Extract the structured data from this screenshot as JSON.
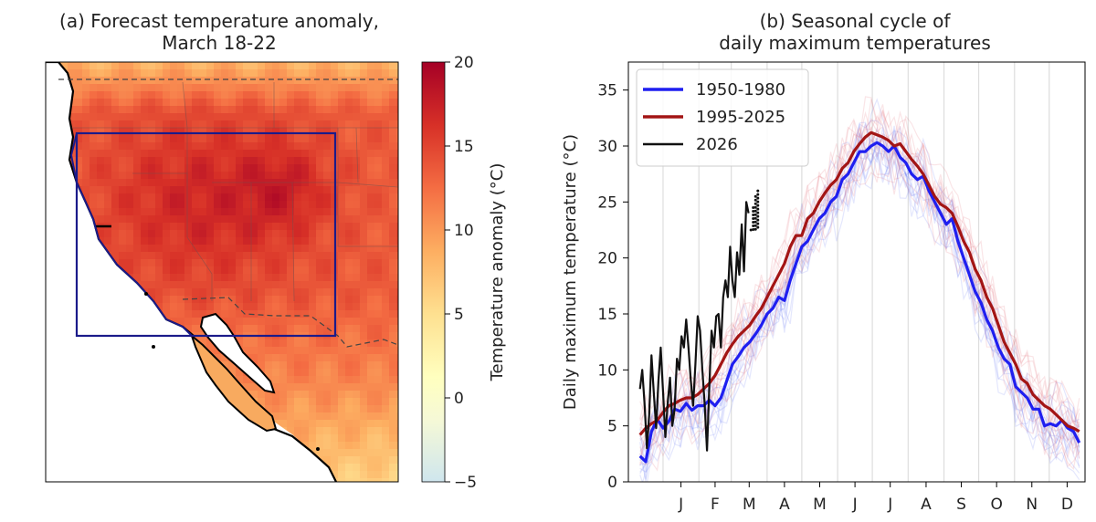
{
  "chart_data": [
    {
      "type": "heatmap",
      "title_line1": "(a) Forecast temperature anomaly,",
      "title_line2": "March 18-22",
      "colorbar_label": "Temperature anomaly (°C)",
      "colorbar_ticks": [
        "20",
        "15",
        "10",
        "5",
        "0",
        "−5"
      ],
      "colorbar_range": [
        -5,
        20
      ],
      "colormap": [
        "#cfe6ee",
        "#ffffbf",
        "#fee090",
        "#fdae61",
        "#f46d43",
        "#d73027",
        "#a50026"
      ],
      "region_box_color": "#1b1b8a"
    },
    {
      "type": "line",
      "title_line1": "(b) Seasonal cycle of",
      "title_line2": "daily maximum temperatures",
      "ylabel": "Daily maximum temperature (°C)",
      "ylim": [
        0,
        37.5
      ],
      "yticks": [
        "0",
        "5",
        "10",
        "15",
        "20",
        "25",
        "30",
        "35"
      ],
      "xlim": [
        -30,
        365
      ],
      "month_labels": [
        "J",
        "F",
        "M",
        "A",
        "M",
        "J",
        "J",
        "A",
        "S",
        "O",
        "N",
        "D"
      ],
      "month_day_index": [
        0,
        31,
        59,
        90,
        120,
        151,
        181,
        212,
        243,
        273,
        304,
        334
      ],
      "series": [
        {
          "name": "1950-1980",
          "color": "#1f1ff0",
          "x": [
            -20,
            -15,
            -10,
            -5,
            0,
            5,
            10,
            15,
            20,
            25,
            30,
            35,
            40,
            45,
            50,
            55,
            60,
            65,
            70,
            75,
            80,
            85,
            90,
            95,
            100,
            105,
            110,
            115,
            120,
            125,
            130,
            135,
            140,
            145,
            150,
            155,
            160,
            165,
            170,
            175,
            180,
            185,
            190,
            195,
            200,
            205,
            210,
            215,
            220,
            225,
            230,
            235,
            240,
            245,
            250,
            255,
            260,
            265,
            270,
            275,
            280,
            285,
            290,
            295,
            300,
            305,
            310,
            315,
            320,
            325,
            330,
            335,
            340,
            345,
            350,
            355,
            360
          ],
          "values": [
            2.3,
            1.8,
            4.5,
            5.6,
            4.8,
            5.4,
            6.5,
            6.3,
            7.0,
            6.4,
            6.8,
            6.8,
            7.3,
            6.8,
            7.5,
            9.0,
            10.5,
            11.2,
            12.0,
            12.5,
            13.2,
            14.0,
            15.0,
            15.5,
            16.5,
            16.2,
            18.0,
            19.5,
            21.0,
            21.5,
            22.5,
            23.5,
            24.0,
            25.0,
            25.5,
            27.0,
            27.5,
            28.5,
            29.5,
            29.5,
            30.0,
            30.3,
            30.0,
            29.5,
            30.0,
            29.0,
            28.5,
            27.5,
            27.0,
            27.3,
            26.0,
            25.0,
            24.0,
            23.0,
            23.5,
            21.5,
            20.0,
            18.5,
            17.0,
            16.0,
            14.5,
            13.5,
            12.0,
            11.0,
            10.5,
            8.5,
            8.0,
            7.5,
            6.5,
            6.5,
            5.0,
            5.2,
            5.0,
            5.5,
            4.8,
            4.5,
            3.5
          ]
        },
        {
          "name": "1995-2025",
          "color": "#a31515",
          "x": [
            -20,
            -15,
            -10,
            -5,
            0,
            5,
            10,
            15,
            20,
            25,
            30,
            35,
            40,
            45,
            50,
            55,
            60,
            65,
            70,
            75,
            80,
            85,
            90,
            95,
            100,
            105,
            110,
            115,
            120,
            125,
            130,
            135,
            140,
            145,
            150,
            155,
            160,
            165,
            170,
            175,
            180,
            185,
            190,
            195,
            200,
            205,
            210,
            215,
            220,
            225,
            230,
            235,
            240,
            245,
            250,
            255,
            260,
            265,
            270,
            275,
            280,
            285,
            290,
            295,
            300,
            305,
            310,
            315,
            320,
            325,
            330,
            335,
            340,
            345,
            350,
            355,
            360
          ],
          "values": [
            4.2,
            4.8,
            5.2,
            5.5,
            6.2,
            6.8,
            7.0,
            7.3,
            7.5,
            7.5,
            7.8,
            8.3,
            8.8,
            9.5,
            10.5,
            11.5,
            12.3,
            13.0,
            13.5,
            14.0,
            14.8,
            15.5,
            16.5,
            17.5,
            18.5,
            19.5,
            21.0,
            22.0,
            22.0,
            23.5,
            24.0,
            25.0,
            25.8,
            26.5,
            27.0,
            28.0,
            28.5,
            29.5,
            30.2,
            30.8,
            31.2,
            31.0,
            30.8,
            30.5,
            30.0,
            30.2,
            29.5,
            28.8,
            28.2,
            27.5,
            26.5,
            25.5,
            24.8,
            24.5,
            24.0,
            22.8,
            21.5,
            20.5,
            19.0,
            18.0,
            16.5,
            15.5,
            14.0,
            12.5,
            11.5,
            10.5,
            9.2,
            8.8,
            7.8,
            7.3,
            6.8,
            6.5,
            6.0,
            5.5,
            5.0,
            4.8,
            4.5
          ]
        },
        {
          "name": "2026",
          "color": "#111111",
          "x": [
            -20,
            -18,
            -16,
            -14,
            -12,
            -10,
            -8,
            -6,
            -4,
            -2,
            0,
            2,
            4,
            6,
            8,
            10,
            12,
            14,
            16,
            18,
            20,
            22,
            24,
            26,
            28,
            30,
            32,
            34,
            36,
            38,
            40,
            42,
            44,
            46,
            48,
            50,
            52,
            54,
            56,
            58,
            60,
            62,
            64,
            66,
            68,
            70,
            72,
            74
          ],
          "values": [
            8.3,
            10.0,
            7.0,
            3.0,
            6.0,
            11.3,
            8.0,
            4.8,
            9.0,
            12.0,
            8.0,
            4.0,
            7.0,
            9.3,
            5.0,
            6.5,
            11.0,
            10.0,
            13.0,
            12.0,
            14.5,
            12.0,
            9.0,
            6.8,
            10.5,
            14.8,
            13.5,
            10.0,
            7.0,
            2.8,
            8.5,
            13.5,
            12.0,
            14.8,
            15.0,
            12.0,
            16.5,
            18.0,
            16.5,
            21.0,
            18.0,
            16.5,
            20.5,
            18.5,
            23.0,
            18.8,
            25.0,
            24.0
          ]
        }
      ],
      "forecast_dots": {
        "x": [
          76,
          78,
          80,
          82
        ],
        "values": [
          22.5,
          24.5,
          25.5,
          26.0
        ]
      }
    }
  ]
}
